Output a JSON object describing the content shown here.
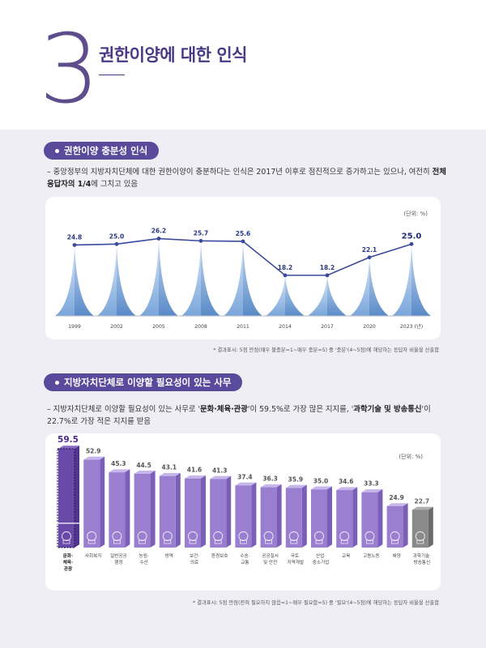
{
  "header": {
    "chapter_number": "3",
    "chapter_title": "권한이양에 대한 인식"
  },
  "section1": {
    "title": "권한이양 충분성 인식",
    "desc_prefix": "– 중앙정부의 지방자치단체에 대한 권한이양이 충분하다는 인식은 2017년 이후로 점진적으로 증가하고는 있으나, 여전히 ",
    "desc_bold": "전체 응답자의 1/4",
    "desc_suffix": "에 그치고 있음",
    "unit": "(단위: %)",
    "note": "* 결과표시: 5점 만점(매우 불충분=1~매우 충분=5) 중 '충분'(4~5점)에 해당하는 응답자 비율을 산출함"
  },
  "section2": {
    "title": "지방자치단체로 이양할 필요성이 있는 사무",
    "desc_prefix": "– 지방자치단체로 이양할 필요성이 있는 사무로 '",
    "desc_bold1": "문화·체육·관광",
    "desc_mid": "'이 59.5%로 가장 많은 지지를, '",
    "desc_bold2": "과학기술 및 방송통신",
    "desc_suffix": "'이 22.7%로 가장 적은 지지를 받음",
    "unit": "(단위: %)",
    "note": "* 결과표시: 5점 만점(전혀 필요하지 않음=1~매우 필요함=5) 중 '필요'(4~5점)에 해당하는 응답자 비율을 산출함"
  },
  "colors": {
    "primary": "#4a3a86",
    "pill": "#5a4a9c",
    "line": "#3a4a9c",
    "bar": "#9a7fd0",
    "bar_highlight": "#6a4aa8",
    "bar_last": "#8a8a8a"
  },
  "chart_data": [
    {
      "type": "line",
      "title": "권한이양 충분성 인식",
      "x": [
        "1999",
        "2002",
        "2005",
        "2008",
        "2011",
        "2014",
        "2017",
        "2020",
        "2023"
      ],
      "x_suffix_last": "(년)",
      "values": [
        24.8,
        25.0,
        26.2,
        25.7,
        25.6,
        18.2,
        18.2,
        22.1,
        25.0
      ],
      "labels": [
        "24.8",
        "25.0",
        "26.2",
        "25.7",
        "25.6",
        "18.2",
        "18.2",
        "22.1",
        "25.0"
      ],
      "ylabel": "%",
      "ylim": [
        12,
        30
      ]
    },
    {
      "type": "bar",
      "title": "지방자치단체로 이양할 필요성이 있는 사무",
      "categories": [
        [
          "문화·",
          "체육·",
          "관광"
        ],
        [
          "사회복지"
        ],
        [
          "일반공공",
          "행정"
        ],
        [
          "농림·",
          "수산"
        ],
        [
          "방역"
        ],
        [
          "보건·",
          "의료"
        ],
        [
          "환경보호"
        ],
        [
          "수송·",
          "교통"
        ],
        [
          "공공질서",
          "및 안전"
        ],
        [
          "국토·",
          "지역개발"
        ],
        [
          "산업·",
          "중소기업"
        ],
        [
          "교육"
        ],
        [
          "고용노동"
        ],
        [
          "해양"
        ],
        [
          "과학기술·",
          "방송통신"
        ]
      ],
      "values": [
        59.5,
        52.9,
        45.3,
        44.5,
        43.1,
        41.6,
        41.3,
        37.4,
        36.3,
        35.9,
        35.0,
        34.6,
        33.3,
        24.9,
        22.7
      ],
      "labels": [
        "59.5",
        "52.9",
        "45.3",
        "44.5",
        "43.1",
        "41.6",
        "41.3",
        "37.4",
        "36.3",
        "35.9",
        "35.0",
        "34.6",
        "33.3",
        "24.9",
        "22.7"
      ],
      "icons": [
        "weightlifter-icon",
        "people-icon",
        "government-building-icon",
        "farm-tractor-icon",
        "shield-cross-icon",
        "syringe-icon",
        "leaf-drop-icon",
        "bus-icon",
        "police-badge-icon",
        "city-crane-icon",
        "factory-icon",
        "graduation-cap-icon",
        "worker-icon",
        "ship-icon",
        "microphone-icon"
      ],
      "ylabel": "%",
      "ylim": [
        0,
        60
      ]
    }
  ]
}
